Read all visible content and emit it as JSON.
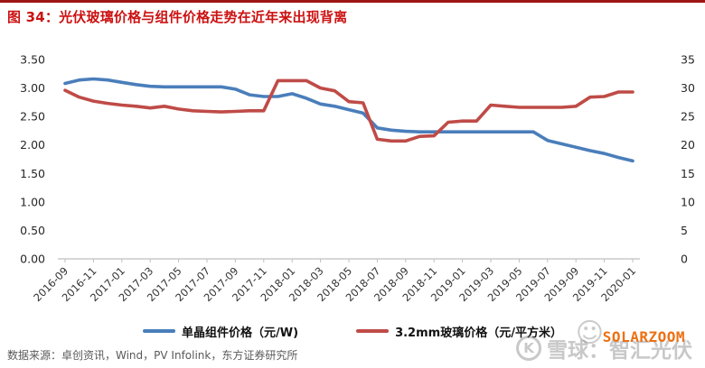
{
  "header": {
    "title": "图 34：光伏玻璃价格与组件价格走势在近年来出现背离"
  },
  "chart_data": {
    "type": "line",
    "title": "图 34：光伏玻璃价格与组件价格走势在近年来出现背离",
    "grid": false,
    "legend_position": "bottom",
    "x_tick_every": 2,
    "x": [
      "2016-09",
      "2016-10",
      "2016-11",
      "2016-12",
      "2017-01",
      "2017-02",
      "2017-03",
      "2017-04",
      "2017-05",
      "2017-06",
      "2017-07",
      "2017-08",
      "2017-09",
      "2017-10",
      "2017-11",
      "2017-12",
      "2018-01",
      "2018-02",
      "2018-03",
      "2018-04",
      "2018-05",
      "2018-06",
      "2018-07",
      "2018-08",
      "2018-09",
      "2018-10",
      "2018-11",
      "2018-12",
      "2019-01",
      "2019-02",
      "2019-03",
      "2019-04",
      "2019-05",
      "2019-06",
      "2019-07",
      "2019-08",
      "2019-09",
      "2019-10",
      "2019-11",
      "2019-12",
      "2020-01"
    ],
    "series": [
      {
        "id": "module-price",
        "name": "单晶组件价格（元/W)",
        "color": "#4a7ebb",
        "axis": "left",
        "values": [
          3.08,
          3.14,
          3.16,
          3.14,
          3.1,
          3.06,
          3.03,
          3.02,
          3.02,
          3.02,
          3.02,
          3.02,
          2.98,
          2.88,
          2.85,
          2.85,
          2.9,
          2.82,
          2.72,
          2.68,
          2.62,
          2.56,
          2.3,
          2.26,
          2.24,
          2.23,
          2.23,
          2.23,
          2.23,
          2.23,
          2.23,
          2.23,
          2.23,
          2.23,
          2.08,
          2.02,
          1.96,
          1.9,
          1.85,
          1.78,
          1.72
        ]
      },
      {
        "id": "glass-price",
        "name": "3.2mm玻璃价格（元/平方米）",
        "color": "#bf4b47",
        "axis": "right",
        "values": [
          29.6,
          28.4,
          27.7,
          27.3,
          27.0,
          26.8,
          26.5,
          26.8,
          26.3,
          26.0,
          25.9,
          25.8,
          25.9,
          26.0,
          26.0,
          31.3,
          31.3,
          31.3,
          30.0,
          29.5,
          27.6,
          27.4,
          21.0,
          20.7,
          20.7,
          21.5,
          21.6,
          24.0,
          24.2,
          24.2,
          27.0,
          26.8,
          26.6,
          26.6,
          26.6,
          26.6,
          26.8,
          28.4,
          28.5,
          29.3,
          29.3
        ]
      }
    ],
    "left_axis": {
      "min": 0,
      "max": 3.5,
      "ticks": [
        "3.50",
        "3.00",
        "2.50",
        "2.00",
        "1.50",
        "1.00",
        "0.50",
        "0.00"
      ]
    },
    "right_axis": {
      "min": 0,
      "max": 35,
      "ticks": [
        "35",
        "30",
        "25",
        "20",
        "15",
        "10",
        "5",
        "0"
      ]
    }
  },
  "footer": {
    "source": "数据来源：卓创资讯，Wind，PV Infolink，东方证券研究所"
  },
  "watermark": {
    "xueqiu_text": "雪球：智汇光伏",
    "logo_letter": "K",
    "smiley": "☺",
    "solarzoom_text": "SOLARZOOM",
    "solarzoom_color": "#ed7012"
  },
  "colors": {
    "title_red": "#cc1111",
    "top_bar_red": "#9e1515",
    "axis_gray": "#bfbfbf",
    "module_blue": "#4a7ebb",
    "glass_red": "#bf4b47"
  }
}
